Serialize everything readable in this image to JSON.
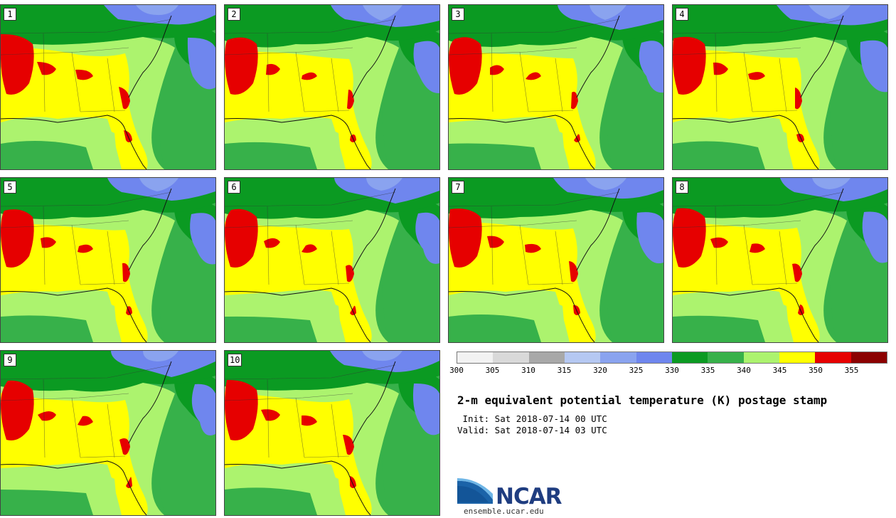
{
  "members": [
    "1",
    "2",
    "3",
    "4",
    "5",
    "6",
    "7",
    "8",
    "9",
    "10"
  ],
  "colorbar": {
    "ticks": [
      "300",
      "305",
      "310",
      "315",
      "320",
      "325",
      "330",
      "335",
      "340",
      "345",
      "350",
      "355"
    ],
    "colors": [
      "#f2f2f2",
      "#d9d9d9",
      "#a8a8a8",
      "#b5c8f2",
      "#8aa3ef",
      "#6f86ee",
      "#0b9a22",
      "#37b14a",
      "#acf36e",
      "#ffff00",
      "#e60000",
      "#8b0000"
    ]
  },
  "colors": {
    "cold_blue": "#6f86ee",
    "light_blue": "#8aa3ef",
    "dark_green": "#0b9a22",
    "mid_green": "#37b14a",
    "light_green": "#acf36e",
    "yellow": "#ffff00",
    "red": "#e60000"
  },
  "title": "2-m equivalent potential temperature (K) postage stamp",
  "init_line": " Init: Sat 2018-07-14 00 UTC",
  "valid_line": "Valid: Sat 2018-07-14 03 UTC",
  "logo": {
    "name": "NCAR",
    "url": "ensemble.ucar.edu"
  }
}
